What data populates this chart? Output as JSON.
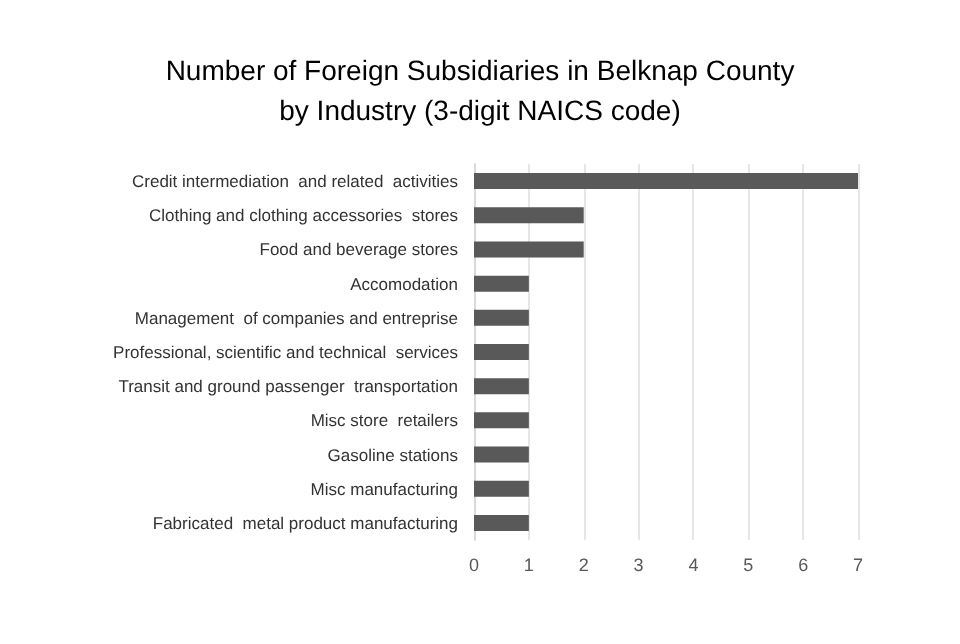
{
  "chart_data": {
    "type": "bar",
    "orientation": "horizontal",
    "title": "Number of Foreign Subsidiaries in Belknap County\nby Industry (3-digit NAICS code)",
    "categories": [
      "Credit intermediation  and related  activities",
      "Clothing and clothing accessories  stores",
      "Food and beverage stores",
      "Accomodation",
      "Management  of companies and entreprise",
      "Professional, scientific and technical  services",
      "Transit and ground passenger  transportation",
      "Misc store  retailers",
      "Gasoline stations",
      "Misc manufacturing",
      "Fabricated  metal product manufacturing"
    ],
    "values": [
      7,
      2,
      2,
      1,
      1,
      1,
      1,
      1,
      1,
      1,
      1
    ],
    "color": "#595959",
    "xlim": [
      0,
      7
    ],
    "xticks": [
      0,
      1,
      2,
      3,
      4,
      5,
      6,
      7
    ],
    "grid": "x"
  }
}
